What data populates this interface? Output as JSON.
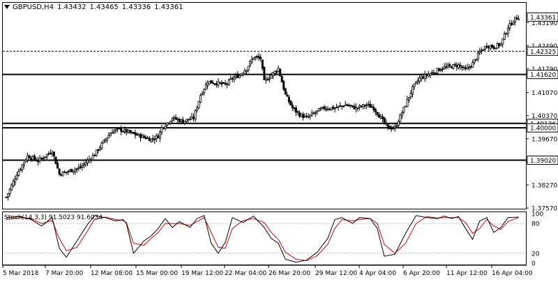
{
  "window": {
    "symbol_timeframe": "GBPUSD,H4",
    "ohlc": [
      "1.43432",
      "1.43465",
      "1.43336",
      "1.43361"
    ]
  },
  "colors": {
    "background": "#ffffff",
    "candle": "#000000",
    "axis_tag_bg": "#ffffff",
    "stoch_main": "#000000",
    "stoch_signal": "#e00000",
    "level_line": "#000000"
  },
  "price_axis": {
    "ticks": [
      "1.43190",
      "1.42490",
      "1.41790",
      "1.41070",
      "1.40370",
      "1.39670",
      "1.38970",
      "1.38270",
      "1.37570"
    ]
  },
  "levels": [
    {
      "label": "1.42325",
      "style": "dashed"
    },
    {
      "label": "1.41620",
      "style": "solid"
    },
    {
      "label": "1.40136",
      "style": "solid"
    },
    {
      "label": "1.40000",
      "style": "solid"
    },
    {
      "label": "1.39020",
      "style": "solid"
    }
  ],
  "current_price": "1.43361",
  "stochastic": {
    "label": "Stoch(14,3,3) 91.5023 91.6034",
    "levels": [
      "100",
      "80",
      "20",
      "0"
    ]
  },
  "time_axis": {
    "ticks": [
      "5 Mar 2018",
      "7 Mar 20:00",
      "12 Mar 08:00",
      "15 Mar 00:00",
      "19 Mar 12:00",
      "22 Mar 04:00",
      "26 Mar 20:00",
      "29 Mar 12:00",
      "4 Apr 04:00",
      "6 Apr 20:00",
      "11 Apr 12:00",
      "16 Apr 04:00"
    ]
  },
  "chart_data": {
    "type": "candlestick",
    "title": "GBPUSD,H4",
    "ylim": [
      1.3757,
      1.4375
    ],
    "anchors": [
      [
        0,
        1.379
      ],
      [
        6,
        1.386
      ],
      [
        12,
        1.3915
      ],
      [
        18,
        1.39
      ],
      [
        26,
        1.393
      ],
      [
        30,
        1.386
      ],
      [
        36,
        1.387
      ],
      [
        42,
        1.388
      ],
      [
        50,
        1.392
      ],
      [
        56,
        1.3965
      ],
      [
        60,
        1.399
      ],
      [
        64,
        1.3995
      ],
      [
        70,
        1.3985
      ],
      [
        76,
        1.3975
      ],
      [
        82,
        1.3965
      ],
      [
        86,
        1.3975
      ],
      [
        88,
        1.4
      ],
      [
        94,
        1.403
      ],
      [
        100,
        1.402
      ],
      [
        106,
        1.403
      ],
      [
        110,
        1.41
      ],
      [
        114,
        1.414
      ],
      [
        120,
        1.4135
      ],
      [
        124,
        1.413
      ],
      [
        128,
        1.415
      ],
      [
        132,
        1.416
      ],
      [
        136,
        1.418
      ],
      [
        140,
        1.4215
      ],
      [
        144,
        1.421
      ],
      [
        146,
        1.414
      ],
      [
        150,
        1.416
      ],
      [
        154,
        1.418
      ],
      [
        158,
        1.41
      ],
      [
        162,
        1.406
      ],
      [
        166,
        1.404
      ],
      [
        170,
        1.403
      ],
      [
        176,
        1.405
      ],
      [
        180,
        1.406
      ],
      [
        186,
        1.406
      ],
      [
        192,
        1.407
      ],
      [
        198,
        1.406
      ],
      [
        204,
        1.407
      ],
      [
        208,
        1.406
      ],
      [
        212,
        1.403
      ],
      [
        216,
        1.4
      ],
      [
        220,
        1.4
      ],
      [
        226,
        1.407
      ],
      [
        230,
        1.412
      ],
      [
        234,
        1.415
      ],
      [
        240,
        1.4165
      ],
      [
        246,
        1.418
      ],
      [
        250,
        1.4185
      ],
      [
        256,
        1.419
      ],
      [
        260,
        1.4175
      ],
      [
        264,
        1.4195
      ],
      [
        268,
        1.423
      ],
      [
        272,
        1.425
      ],
      [
        276,
        1.4245
      ],
      [
        280,
        1.4255
      ],
      [
        284,
        1.4305
      ],
      [
        288,
        1.433
      ],
      [
        290,
        1.4336
      ]
    ],
    "stoch_k": [
      [
        0,
        92
      ],
      [
        8,
        94
      ],
      [
        14,
        88
      ],
      [
        20,
        75
      ],
      [
        26,
        92
      ],
      [
        30,
        30
      ],
      [
        34,
        12
      ],
      [
        40,
        45
      ],
      [
        46,
        78
      ],
      [
        50,
        96
      ],
      [
        56,
        92
      ],
      [
        62,
        85
      ],
      [
        66,
        88
      ],
      [
        68,
        80
      ],
      [
        72,
        20
      ],
      [
        78,
        45
      ],
      [
        82,
        55
      ],
      [
        86,
        70
      ],
      [
        90,
        90
      ],
      [
        94,
        72
      ],
      [
        98,
        84
      ],
      [
        104,
        72
      ],
      [
        108,
        90
      ],
      [
        112,
        96
      ],
      [
        116,
        40
      ],
      [
        120,
        20
      ],
      [
        124,
        42
      ],
      [
        128,
        92
      ],
      [
        134,
        82
      ],
      [
        140,
        95
      ],
      [
        146,
        72
      ],
      [
        150,
        50
      ],
      [
        154,
        40
      ],
      [
        158,
        8
      ],
      [
        164,
        2
      ],
      [
        170,
        6
      ],
      [
        176,
        22
      ],
      [
        182,
        50
      ],
      [
        186,
        88
      ],
      [
        190,
        92
      ],
      [
        196,
        80
      ],
      [
        200,
        92
      ],
      [
        206,
        90
      ],
      [
        210,
        70
      ],
      [
        214,
        14
      ],
      [
        220,
        18
      ],
      [
        226,
        60
      ],
      [
        232,
        96
      ],
      [
        238,
        92
      ],
      [
        244,
        90
      ],
      [
        248,
        95
      ],
      [
        252,
        90
      ],
      [
        256,
        94
      ],
      [
        260,
        70
      ],
      [
        264,
        48
      ],
      [
        268,
        85
      ],
      [
        272,
        92
      ],
      [
        276,
        62
      ],
      [
        280,
        72
      ],
      [
        284,
        92
      ],
      [
        290,
        93
      ]
    ],
    "stoch_d": [
      [
        0,
        88
      ],
      [
        8,
        92
      ],
      [
        14,
        90
      ],
      [
        20,
        80
      ],
      [
        26,
        86
      ],
      [
        30,
        50
      ],
      [
        34,
        25
      ],
      [
        40,
        32
      ],
      [
        46,
        65
      ],
      [
        50,
        88
      ],
      [
        56,
        93
      ],
      [
        62,
        88
      ],
      [
        66,
        86
      ],
      [
        68,
        82
      ],
      [
        72,
        40
      ],
      [
        78,
        36
      ],
      [
        82,
        50
      ],
      [
        86,
        62
      ],
      [
        90,
        80
      ],
      [
        94,
        80
      ],
      [
        98,
        80
      ],
      [
        104,
        76
      ],
      [
        108,
        84
      ],
      [
        112,
        92
      ],
      [
        116,
        62
      ],
      [
        120,
        32
      ],
      [
        124,
        30
      ],
      [
        128,
        70
      ],
      [
        134,
        86
      ],
      [
        140,
        90
      ],
      [
        146,
        82
      ],
      [
        150,
        62
      ],
      [
        154,
        48
      ],
      [
        158,
        22
      ],
      [
        164,
        8
      ],
      [
        170,
        5
      ],
      [
        176,
        15
      ],
      [
        182,
        38
      ],
      [
        186,
        70
      ],
      [
        190,
        88
      ],
      [
        196,
        85
      ],
      [
        200,
        88
      ],
      [
        206,
        90
      ],
      [
        210,
        80
      ],
      [
        214,
        38
      ],
      [
        220,
        20
      ],
      [
        226,
        40
      ],
      [
        232,
        80
      ],
      [
        238,
        94
      ],
      [
        244,
        91
      ],
      [
        248,
        92
      ],
      [
        252,
        92
      ],
      [
        256,
        92
      ],
      [
        260,
        82
      ],
      [
        264,
        60
      ],
      [
        268,
        70
      ],
      [
        272,
        88
      ],
      [
        276,
        75
      ],
      [
        280,
        68
      ],
      [
        284,
        84
      ],
      [
        290,
        92
      ]
    ]
  }
}
